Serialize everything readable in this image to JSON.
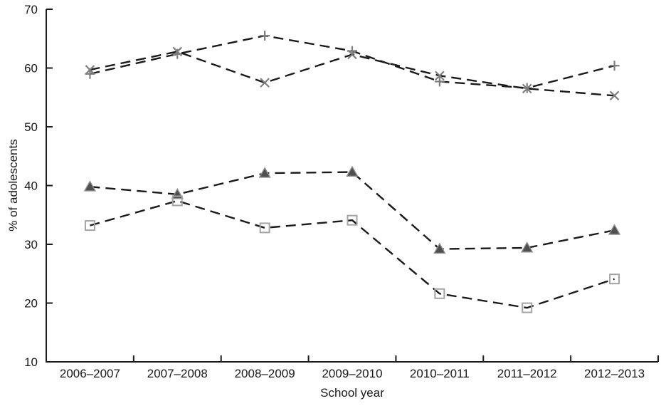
{
  "figure": {
    "background": "#ffffff",
    "axis_color": "#1a1a1a",
    "text_color": "#1a1a1a"
  },
  "chart_data": {
    "type": "line",
    "title": "",
    "xlabel": "School year",
    "ylabel": "% of adolescents",
    "categories": [
      "2006–2007",
      "2007–2008",
      "2008–2009",
      "2009–2010",
      "2010–2011",
      "2011–2012",
      "2012–2013"
    ],
    "ylim": [
      10,
      70
    ],
    "yticks": [
      10,
      20,
      30,
      40,
      50,
      60,
      70
    ],
    "grid": false,
    "legend_position": "none",
    "line_style": "dashed",
    "line_color": "#1a1a1a",
    "series": [
      {
        "name": "plus-series",
        "marker": "plus",
        "marker_color": "#7d7d7d",
        "values": [
          59.0,
          62.4,
          65.5,
          62.9,
          57.7,
          56.6,
          60.4
        ]
      },
      {
        "name": "x-series",
        "marker": "x",
        "marker_color": "#7d7d7d",
        "values": [
          59.7,
          62.8,
          57.5,
          62.3,
          58.7,
          56.5,
          55.3
        ]
      },
      {
        "name": "triangle-series",
        "marker": "triangle-filled",
        "marker_color": "#4f4f4f",
        "marker_edge_color": "#8f8f8f",
        "values": [
          39.8,
          38.5,
          42.1,
          42.3,
          29.2,
          29.4,
          32.4
        ]
      },
      {
        "name": "square-series",
        "marker": "square-open",
        "marker_color": "#a3a3a3",
        "values": [
          33.2,
          37.4,
          32.8,
          34.1,
          21.6,
          19.2,
          24.1
        ]
      }
    ]
  }
}
